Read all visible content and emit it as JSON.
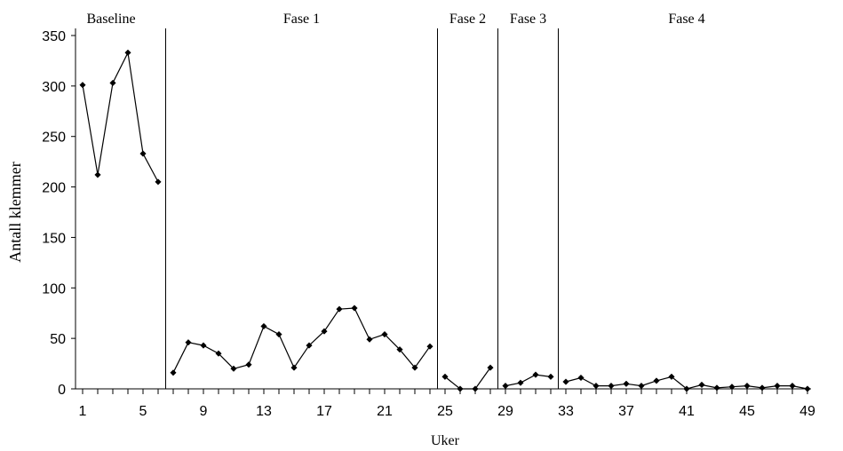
{
  "chart_data": {
    "type": "line",
    "title": "",
    "xlabel": "Uker",
    "ylabel": "Antall klemmer",
    "ylim": [
      0,
      350
    ],
    "xlim": [
      1,
      49
    ],
    "yticks": [
      "0",
      "50",
      "100",
      "150",
      "200",
      "250",
      "300",
      "350"
    ],
    "xticks": [
      "1",
      "5",
      "9",
      "13",
      "17",
      "21",
      "25",
      "29",
      "33",
      "37",
      "41",
      "45",
      "49"
    ],
    "grid": false,
    "legend": "none",
    "color": "#000000",
    "phases": [
      {
        "label": "Baseline",
        "start": 1,
        "end": 6
      },
      {
        "label": "Fase 1",
        "start": 7,
        "end": 24
      },
      {
        "label": "Fase 2",
        "start": 25,
        "end": 28
      },
      {
        "label": "Fase 3",
        "start": 29,
        "end": 32
      },
      {
        "label": "Fase 4",
        "start": 33,
        "end": 49
      }
    ],
    "phase_boundaries": [
      6.5,
      24.5,
      28.5,
      32.5
    ],
    "segments": [
      {
        "x": [
          1,
          2,
          3,
          4,
          5,
          6
        ],
        "y": [
          301,
          212,
          303,
          333,
          233,
          205
        ]
      },
      {
        "x": [
          7,
          8,
          9,
          10,
          11,
          12,
          13,
          14,
          15,
          16,
          17,
          18,
          19,
          20,
          21,
          22,
          23,
          24
        ],
        "y": [
          16,
          46,
          43,
          35,
          20,
          24,
          62,
          54,
          21,
          43,
          57,
          79,
          80,
          49,
          54,
          39,
          21,
          42
        ]
      },
      {
        "x": [
          25,
          26,
          27,
          28
        ],
        "y": [
          12,
          0,
          0,
          21
        ]
      },
      {
        "x": [
          29,
          30,
          31,
          32
        ],
        "y": [
          3,
          6,
          14,
          12
        ]
      },
      {
        "x": [
          33,
          34,
          35,
          36,
          37,
          38,
          39,
          40,
          41,
          42,
          43,
          44,
          45,
          46,
          47,
          48,
          49
        ],
        "y": [
          7,
          11,
          3,
          3,
          5,
          3,
          8,
          12,
          0,
          4,
          1,
          2,
          3,
          1,
          3,
          3,
          0
        ]
      }
    ]
  }
}
